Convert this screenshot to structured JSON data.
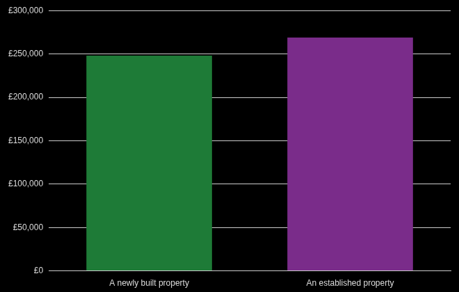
{
  "chart_data": {
    "type": "bar",
    "categories": [
      "A newly built property",
      "An established property"
    ],
    "values": [
      248000,
      269000
    ],
    "colors": [
      "#1e7b37",
      "#7a2c8a"
    ],
    "ylim": [
      0,
      300000
    ],
    "yticks": [
      {
        "value": 0,
        "label": "£0"
      },
      {
        "value": 50000,
        "label": "£50,000"
      },
      {
        "value": 100000,
        "label": "£100,000"
      },
      {
        "value": 150000,
        "label": "£150,000"
      },
      {
        "value": 200000,
        "label": "£200,000"
      },
      {
        "value": 250000,
        "label": "£250,000"
      },
      {
        "value": 300000,
        "label": "£300,000"
      }
    ],
    "grid": true
  }
}
